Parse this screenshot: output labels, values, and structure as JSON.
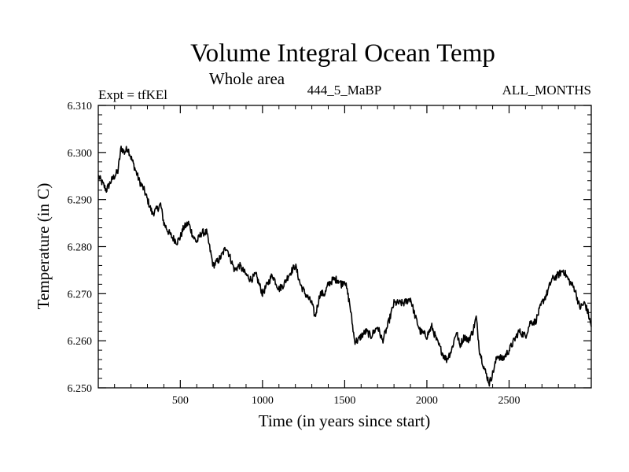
{
  "chart_data": {
    "type": "line",
    "title": "Volume Integral Ocean Temp",
    "subtitle": "Whole area",
    "annotations": {
      "left": "Expt = tfKEl",
      "center": "444_5_MaBP",
      "right": "ALL_MONTHS"
    },
    "xlabel": "Time (in years since start)",
    "ylabel": "Temperature (in C)",
    "xlim": [
      1,
      3000
    ],
    "ylim": [
      6.25,
      6.31
    ],
    "x_ticks": [
      500,
      1000,
      1500,
      2000,
      2500
    ],
    "y_ticks": [
      6.25,
      6.26,
      6.27,
      6.28,
      6.29,
      6.3,
      6.31
    ],
    "x_tick_labels": [
      "500",
      "1000",
      "1500",
      "2000",
      "2500"
    ],
    "y_tick_labels": [
      "6.250",
      "6.260",
      "6.270",
      "6.280",
      "6.290",
      "6.300",
      "6.310"
    ],
    "grid": false,
    "series": [
      {
        "color": "#000000",
        "x": [
          1,
          50,
          80,
          100,
          120,
          140,
          160,
          180,
          200,
          220,
          250,
          280,
          300,
          330,
          360,
          380,
          400,
          430,
          450,
          480,
          500,
          520,
          550,
          580,
          600,
          630,
          660,
          700,
          730,
          750,
          780,
          800,
          830,
          860,
          900,
          930,
          960,
          980,
          1000,
          1030,
          1060,
          1100,
          1130,
          1160,
          1200,
          1230,
          1260,
          1300,
          1320,
          1350,
          1380,
          1400,
          1430,
          1460,
          1480,
          1500,
          1530,
          1560,
          1580,
          1600,
          1630,
          1660,
          1700,
          1730,
          1760,
          1800,
          1830,
          1860,
          1900,
          1930,
          1960,
          2000,
          2030,
          2060,
          2100,
          2120,
          2150,
          2180,
          2200,
          2230,
          2250,
          2280,
          2300,
          2320,
          2350,
          2380,
          2400,
          2430,
          2460,
          2500,
          2530,
          2560,
          2600,
          2630,
          2660,
          2700,
          2730,
          2760,
          2800,
          2830,
          2860,
          2900,
          2930,
          2960,
          2980,
          3000
        ],
        "y": [
          6.295,
          6.292,
          6.294,
          6.295,
          6.296,
          6.301,
          6.3,
          6.301,
          6.299,
          6.297,
          6.294,
          6.292,
          6.29,
          6.287,
          6.288,
          6.289,
          6.285,
          6.283,
          6.282,
          6.281,
          6.282,
          6.284,
          6.285,
          6.282,
          6.281,
          6.283,
          6.283,
          6.276,
          6.277,
          6.278,
          6.28,
          6.278,
          6.275,
          6.276,
          6.274,
          6.273,
          6.274,
          6.272,
          6.27,
          6.272,
          6.274,
          6.271,
          6.272,
          6.274,
          6.276,
          6.272,
          6.27,
          6.268,
          6.265,
          6.27,
          6.27,
          6.272,
          6.273,
          6.273,
          6.272,
          6.273,
          6.268,
          6.26,
          6.26,
          6.261,
          6.262,
          6.261,
          6.263,
          6.26,
          6.263,
          6.268,
          6.268,
          6.268,
          6.269,
          6.265,
          6.262,
          6.261,
          6.263,
          6.26,
          6.257,
          6.256,
          6.258,
          6.262,
          6.259,
          6.261,
          6.26,
          6.262,
          6.265,
          6.258,
          6.254,
          6.251,
          6.253,
          6.257,
          6.256,
          6.258,
          6.26,
          6.262,
          6.261,
          6.264,
          6.264,
          6.268,
          6.27,
          6.273,
          6.274,
          6.275,
          6.273,
          6.271,
          6.267,
          6.268,
          6.266,
          6.263
        ]
      }
    ]
  }
}
